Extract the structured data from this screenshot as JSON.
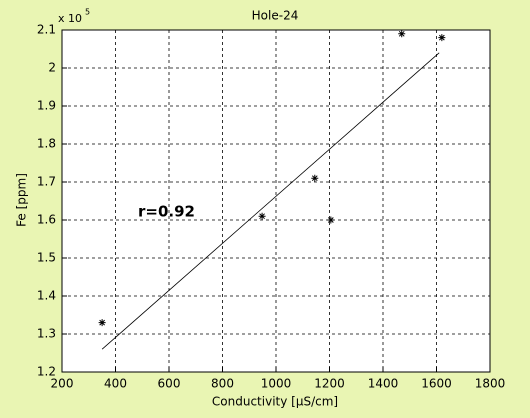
{
  "chart_data": {
    "type": "scatter",
    "title": "Hole-24",
    "x_label": "Conductivity [µS/cm]",
    "y_label": "Fe [ppm]",
    "y_multiplier": {
      "base": "x 10",
      "exponent": "5"
    },
    "annotation": "r=0.92",
    "series": [
      {
        "color": "#000000",
        "marker": "asterisk",
        "x": [
          350,
          948,
          1145,
          1205,
          1470,
          1620
        ],
        "values": [
          1.33,
          1.61,
          1.71,
          1.6,
          2.09,
          2.08
        ]
      }
    ],
    "fit_line": {
      "color": "#000000",
      "x": [
        350,
        1610
      ],
      "values": [
        1.26,
        2.04
      ]
    },
    "xlim": [
      200,
      1800
    ],
    "xticks": [
      200,
      400,
      600,
      800,
      1000,
      1200,
      1400,
      1600,
      1800
    ],
    "ylim": [
      1.2,
      2.1
    ],
    "yticks": [
      1.2,
      1.3,
      1.4,
      1.5,
      1.6,
      1.7,
      1.8,
      1.9,
      2,
      2.1
    ],
    "grid": true
  }
}
